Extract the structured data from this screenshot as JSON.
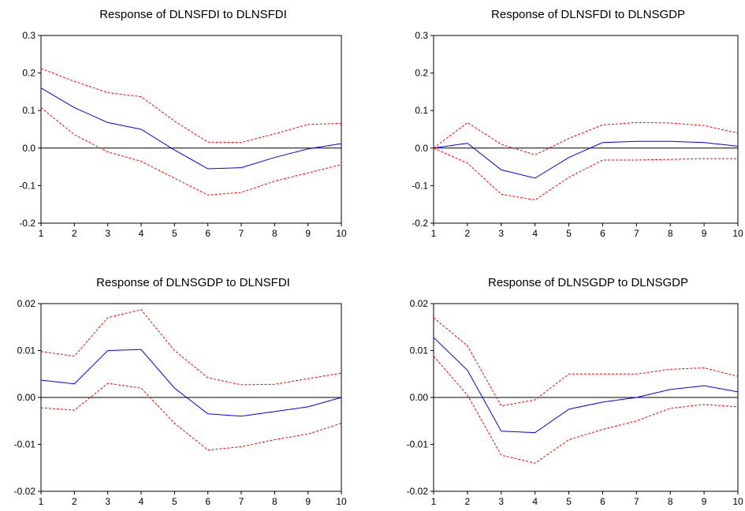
{
  "chart_data": [
    {
      "type": "line",
      "title": "Response of DLNSFDI to DLNSFDI",
      "x": [
        1,
        2,
        3,
        4,
        5,
        6,
        7,
        8,
        9,
        10
      ],
      "ylim": [
        -0.2,
        0.3
      ],
      "yticks": [
        "0.3",
        "0.2",
        "0.1",
        "0.0",
        "-0.1",
        "-0.2"
      ],
      "ytick_values": [
        0.3,
        0.2,
        0.1,
        0.0,
        -0.1,
        -0.2
      ],
      "series": [
        {
          "role": "response",
          "color": "#0000ff",
          "style": "solid",
          "values": [
            0.16,
            0.108,
            0.068,
            0.05,
            -0.005,
            -0.055,
            -0.052,
            -0.025,
            -0.002,
            0.012
          ]
        },
        {
          "role": "upper",
          "color": "#ff0000",
          "style": "dashed",
          "values": [
            0.212,
            0.178,
            0.148,
            0.137,
            0.072,
            0.016,
            0.015,
            0.038,
            0.063,
            0.066
          ]
        },
        {
          "role": "lower",
          "color": "#ff0000",
          "style": "dashed",
          "values": [
            0.108,
            0.036,
            -0.01,
            -0.035,
            -0.08,
            -0.125,
            -0.118,
            -0.088,
            -0.066,
            -0.044
          ]
        }
      ]
    },
    {
      "type": "line",
      "title": "Response of DLNSFDI to DLNSGDP",
      "x": [
        1,
        2,
        3,
        4,
        5,
        6,
        7,
        8,
        9,
        10
      ],
      "ylim": [
        -0.2,
        0.3
      ],
      "yticks": [
        "0.3",
        "0.2",
        "0.1",
        "0.0",
        "-0.1",
        "-0.2"
      ],
      "ytick_values": [
        0.3,
        0.2,
        0.1,
        0.0,
        -0.1,
        -0.2
      ],
      "series": [
        {
          "role": "response",
          "color": "#0000ff",
          "style": "solid",
          "values": [
            0.0,
            0.013,
            -0.058,
            -0.08,
            -0.025,
            0.015,
            0.018,
            0.018,
            0.015,
            0.005
          ]
        },
        {
          "role": "upper",
          "color": "#ff0000",
          "style": "dashed",
          "values": [
            0.0,
            0.068,
            0.01,
            -0.018,
            0.026,
            0.062,
            0.068,
            0.067,
            0.06,
            0.04
          ]
        },
        {
          "role": "lower",
          "color": "#ff0000",
          "style": "dashed",
          "values": [
            0.0,
            -0.04,
            -0.123,
            -0.138,
            -0.078,
            -0.032,
            -0.032,
            -0.03,
            -0.028,
            -0.028
          ]
        }
      ]
    },
    {
      "type": "line",
      "title": "Response of DLNSGDP to DLNSFDI",
      "x": [
        1,
        2,
        3,
        4,
        5,
        6,
        7,
        8,
        9,
        10
      ],
      "ylim": [
        -0.02,
        0.02
      ],
      "yticks": [
        "0.02",
        "0.01",
        "0.00",
        "-0.01",
        "-0.02"
      ],
      "ytick_values": [
        0.02,
        0.01,
        0.0,
        -0.01,
        -0.02
      ],
      "series": [
        {
          "role": "response",
          "color": "#0000ff",
          "style": "solid",
          "values": [
            0.0037,
            0.0029,
            0.01,
            0.0102,
            0.002,
            -0.0035,
            -0.004,
            -0.003,
            -0.002,
            0.0
          ]
        },
        {
          "role": "upper",
          "color": "#ff0000",
          "style": "dashed",
          "values": [
            0.0098,
            0.0088,
            0.017,
            0.0187,
            0.01,
            0.0042,
            0.0027,
            0.0028,
            0.004,
            0.0052
          ]
        },
        {
          "role": "lower",
          "color": "#ff0000",
          "style": "dashed",
          "values": [
            -0.0022,
            -0.0027,
            0.003,
            0.002,
            -0.0055,
            -0.0112,
            -0.0105,
            -0.009,
            -0.0078,
            -0.0055
          ]
        }
      ]
    },
    {
      "type": "line",
      "title": "Response of DLNSGDP to DLNSGDP",
      "x": [
        1,
        2,
        3,
        4,
        5,
        6,
        7,
        8,
        9,
        10
      ],
      "ylim": [
        -0.02,
        0.02
      ],
      "yticks": [
        "0.02",
        "0.01",
        "0.00",
        "-0.01",
        "-0.02"
      ],
      "ytick_values": [
        0.02,
        0.01,
        0.0,
        -0.01,
        -0.02
      ],
      "series": [
        {
          "role": "response",
          "color": "#0000ff",
          "style": "solid",
          "values": [
            0.0128,
            0.0058,
            -0.0072,
            -0.0075,
            -0.0025,
            -0.001,
            0.0,
            0.0017,
            0.0025,
            0.0012
          ]
        },
        {
          "role": "upper",
          "color": "#ff0000",
          "style": "dashed",
          "values": [
            0.017,
            0.011,
            -0.0018,
            -0.0005,
            0.005,
            0.005,
            0.005,
            0.006,
            0.0063,
            0.0045
          ]
        },
        {
          "role": "lower",
          "color": "#ff0000",
          "style": "dashed",
          "values": [
            0.0088,
            0.0005,
            -0.0123,
            -0.014,
            -0.009,
            -0.0068,
            -0.005,
            -0.0023,
            -0.0015,
            -0.002
          ]
        }
      ]
    }
  ]
}
